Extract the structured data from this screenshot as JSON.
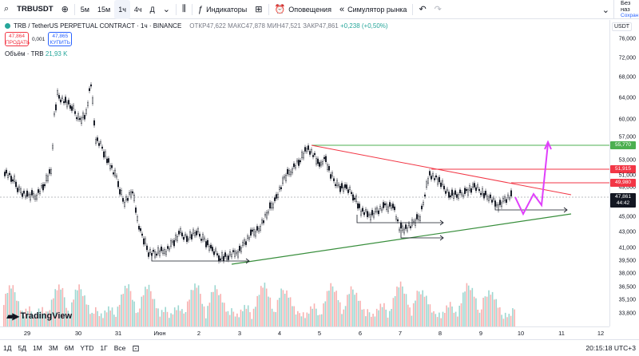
{
  "toolbar": {
    "symbol": "TRBUSDT",
    "intervals": [
      "5м",
      "15м",
      "1ч",
      "4ч",
      "Д"
    ],
    "active_interval": "1ч",
    "indicators_label": "Индикаторы",
    "alerts_label": "Оповещения",
    "replay_label": "Симулятор рынка",
    "signin_label": "Без наз",
    "signin_sub": "Сохран"
  },
  "legend": {
    "title": "TRB / TetherUS PERPETUAL CONTRACT · 1ч · BINANCE",
    "open": "ОТКР47,622",
    "high": "МАКС47,878",
    "low": "МИН47,521",
    "close": "ЗАКР47,861",
    "change": "+0,238 (+0,50%)",
    "sell_price": "47,864",
    "sell_label": "ПРОДАТЬ",
    "spread": "0,001",
    "buy_price": "47,865",
    "buy_label": "КУПИТЬ",
    "volume_label": "Объём · TRB",
    "volume_value": "21,93 K"
  },
  "price_axis": {
    "currency": "USDT",
    "ticks": [
      "76,000",
      "72,000",
      "68,000",
      "64,000",
      "60,000",
      "57,000",
      "53,000",
      "49,000",
      "45,000",
      "43,000",
      "41,000",
      "39,500",
      "38,000",
      "36,500",
      "35,100",
      "33,800"
    ],
    "current_price": "47,861",
    "countdown": "44:42",
    "levels": [
      {
        "label": "55,770",
        "color": "#4caf50"
      },
      {
        "label": "51,915",
        "color": "#f23645"
      },
      {
        "label": "49,980",
        "color": "#f23645"
      },
      {
        "label": "51,000",
        "color": "#ffffff"
      }
    ]
  },
  "time_axis": {
    "labels": [
      "29",
      "30",
      "31",
      "Июн",
      "2",
      "3",
      "4",
      "5",
      "6",
      "7",
      "8",
      "9",
      "10",
      "11",
      "12"
    ]
  },
  "bottom_bar": {
    "ranges": [
      "1Д",
      "5Д",
      "1М",
      "3М",
      "6М",
      "YTD",
      "1Г",
      "Все"
    ],
    "clock": "20:15:18 UTC+3"
  },
  "branding": {
    "logo_text": "TradingView"
  },
  "colors": {
    "up": "#26a69a",
    "down": "#ef5350",
    "resistance": "#f23645",
    "support": "#388e3c",
    "target": "#4caf50",
    "projection": "#e040fb"
  }
}
